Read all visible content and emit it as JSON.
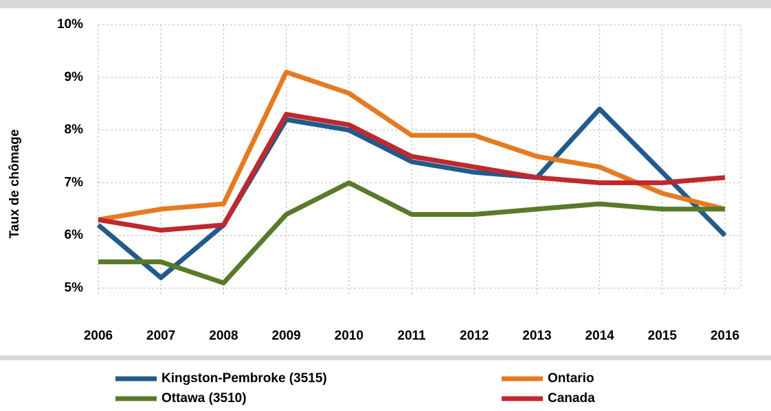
{
  "chart_data": {
    "type": "line",
    "y_label": "Taux de chômage",
    "categories": [
      "2006",
      "2007",
      "2008",
      "2009",
      "2010",
      "2011",
      "2012",
      "2013",
      "2014",
      "2015",
      "2016"
    ],
    "series": [
      {
        "name": "Kingston-Pembroke (3515)",
        "color": "#235a8c",
        "values": [
          6.2,
          5.2,
          6.2,
          8.2,
          8.0,
          7.4,
          7.2,
          7.1,
          8.4,
          7.2,
          6.0
        ]
      },
      {
        "name": "Ontario",
        "color": "#e47b22",
        "values": [
          6.3,
          6.5,
          6.6,
          9.1,
          8.7,
          7.9,
          7.9,
          7.5,
          7.3,
          6.8,
          6.5
        ]
      },
      {
        "name": "Ottawa (3510)",
        "color": "#5a7a2a",
        "values": [
          5.5,
          5.5,
          5.1,
          6.4,
          7.0,
          6.4,
          6.4,
          6.5,
          6.6,
          6.5,
          6.5
        ]
      },
      {
        "name": "Canada",
        "color": "#c0282e",
        "values": [
          6.3,
          6.1,
          6.2,
          8.3,
          8.1,
          7.5,
          7.3,
          7.1,
          7.0,
          7.0,
          7.1
        ]
      }
    ],
    "ylim": [
      5,
      10
    ],
    "yticks": [
      {
        "value": 5,
        "label": "5%"
      },
      {
        "value": 6,
        "label": "6%"
      },
      {
        "value": 7,
        "label": "7%"
      },
      {
        "value": 8,
        "label": "8%"
      },
      {
        "value": 9,
        "label": "9%"
      },
      {
        "value": 10,
        "label": "10%"
      }
    ],
    "grid": true,
    "legend": "bottom"
  }
}
